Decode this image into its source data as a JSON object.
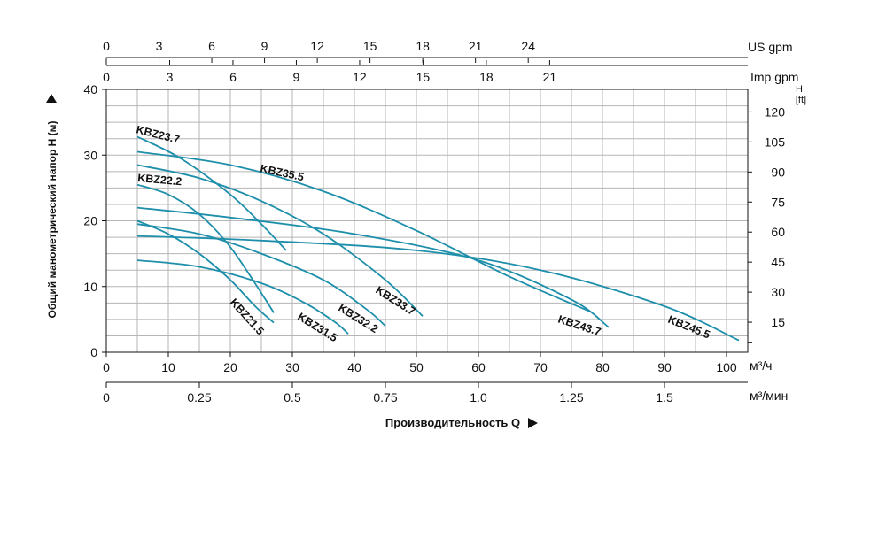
{
  "chart_data": {
    "type": "line",
    "ylabel": "Общий манометрический напор H (м)",
    "xlabel": "Производительность Q",
    "x_unit_main": "м³/ч",
    "x_unit_min": "м³/мин",
    "top_unit_us": "US gpm",
    "top_unit_imp": "Imp gpm",
    "right_unit_h": "H",
    "right_unit_ft": "[ft]",
    "xlim": [
      0,
      103
    ],
    "ylim": [
      0,
      40
    ],
    "x_ticks": [
      0,
      10,
      20,
      30,
      40,
      50,
      60,
      70,
      80,
      90,
      100
    ],
    "y_ticks": [
      0,
      10,
      20,
      30,
      40
    ],
    "min_ticks": [
      "0",
      "0.25",
      "0.5",
      "0.75",
      "1.0",
      "1.25",
      "1.5"
    ],
    "us_ticks": [
      0,
      3,
      6,
      9,
      12,
      15,
      18,
      21,
      24
    ],
    "imp_ticks": [
      0,
      3,
      6,
      9,
      12,
      15,
      18,
      21
    ],
    "ft_ticks": [
      15,
      30,
      45,
      60,
      75,
      90,
      105,
      120
    ],
    "grid": true,
    "series": [
      {
        "name": "KBZ23.7",
        "x": [
          5,
          12,
          20,
          25,
          29
        ],
        "y": [
          32.8,
          29.5,
          24,
          19.5,
          15.5
        ]
      },
      {
        "name": "KBZ22.2",
        "x": [
          5,
          10,
          15,
          20,
          25,
          27
        ],
        "y": [
          25.5,
          24,
          21,
          16,
          9,
          6
        ]
      },
      {
        "name": "KBZ21.5",
        "x": [
          5,
          10,
          15,
          20,
          24,
          27
        ],
        "y": [
          20,
          18,
          15,
          11,
          7,
          4.5
        ]
      },
      {
        "name": "KBZ31.5",
        "x": [
          5,
          15,
          25,
          32,
          37,
          39
        ],
        "y": [
          14,
          13,
          10.5,
          7.5,
          4.5,
          2.8
        ]
      },
      {
        "name": "KBZ32.2",
        "x": [
          5,
          15,
          25,
          35,
          42,
          45
        ],
        "y": [
          19.5,
          18,
          15,
          11,
          6.5,
          4
        ]
      },
      {
        "name": "KBZ33.7",
        "x": [
          5,
          15,
          25,
          35,
          45,
          51
        ],
        "y": [
          28.5,
          26.5,
          23,
          18,
          11,
          5.5
        ]
      },
      {
        "name": "KBZ35.5",
        "x": [
          5,
          20,
          35,
          50,
          65,
          78
        ],
        "y": [
          30.5,
          28.5,
          24.5,
          18.5,
          11.5,
          6.2
        ]
      },
      {
        "name": "KBZ43.7",
        "x": [
          5,
          20,
          40,
          60,
          75,
          81
        ],
        "y": [
          22,
          20.5,
          18,
          14,
          8,
          3.8
        ]
      },
      {
        "name": "KBZ45.5",
        "x": [
          5,
          25,
          50,
          70,
          90,
          102
        ],
        "y": [
          17.7,
          17,
          15.5,
          12.5,
          7,
          1.8
        ]
      }
    ]
  },
  "colors": {
    "curve": "#1e8fab",
    "grid": "#b5b5b5",
    "axis": "#111111"
  }
}
